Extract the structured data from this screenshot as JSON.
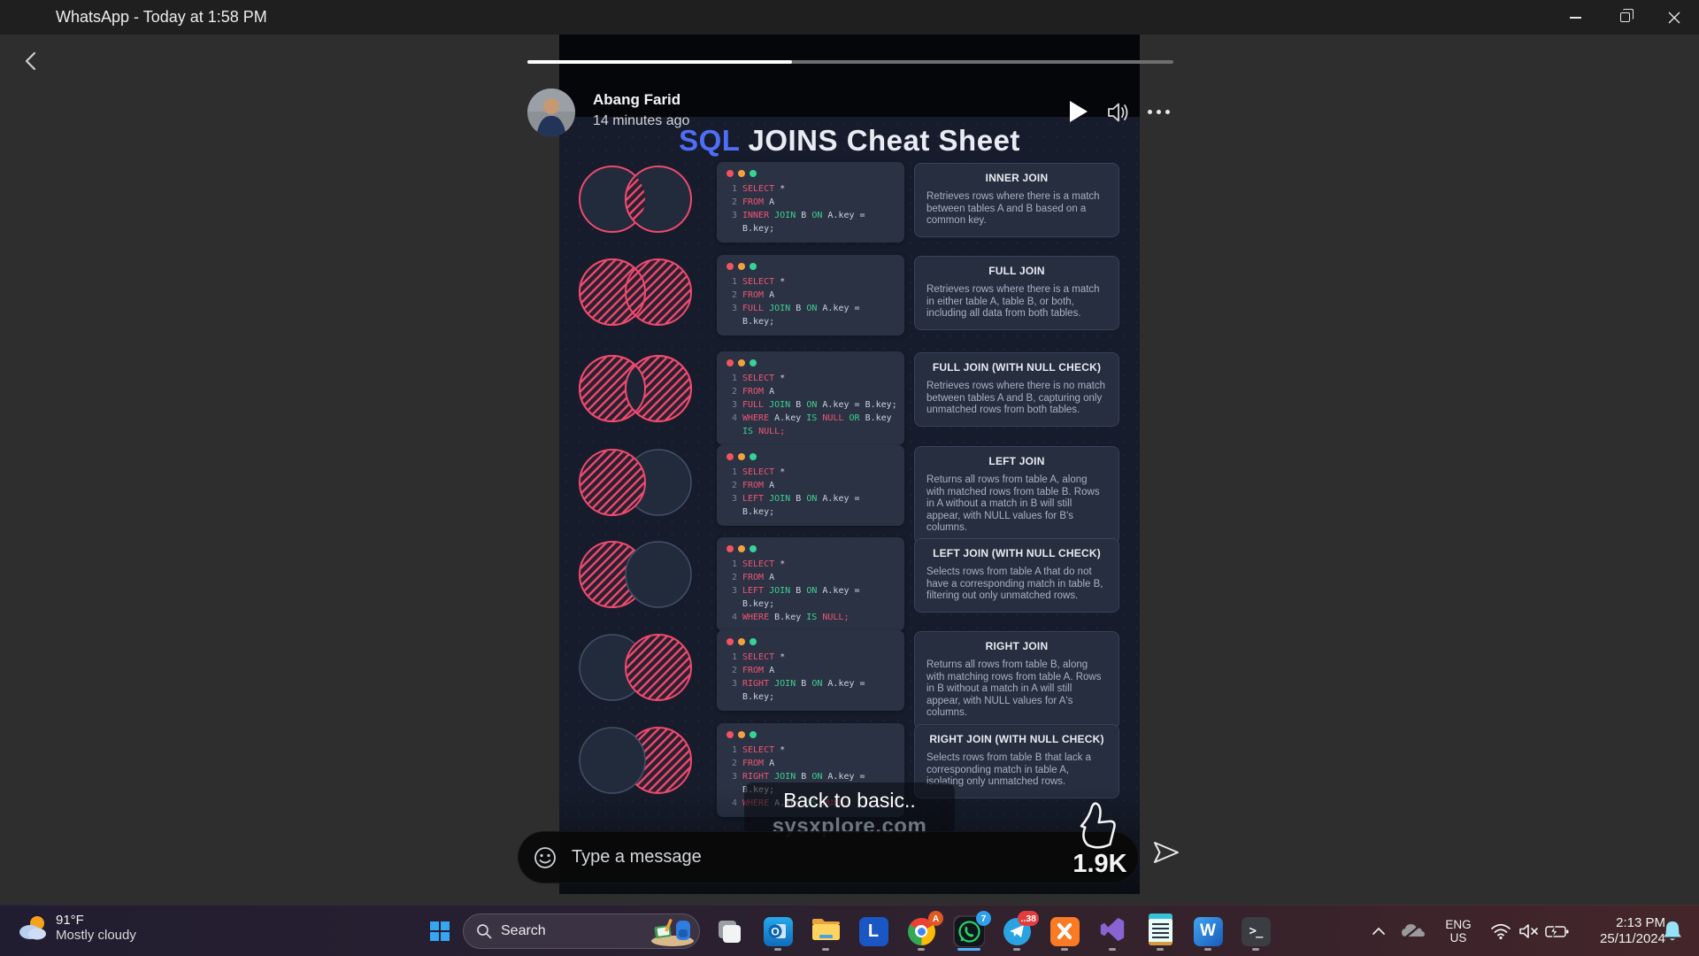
{
  "window": {
    "title": "WhatsApp - Today at 1:58 PM"
  },
  "status": {
    "author": "Abang Farid",
    "time_ago": "14 minutes ago",
    "progress_percent": 41,
    "caption": "Back to basic..",
    "watermark": "sysxplore.com",
    "likes": "1.9K",
    "message_placeholder": "Type a message"
  },
  "colors": {
    "title_accent": "#4f6ef7",
    "keyword": "#ee5672",
    "green": "#3fd08f",
    "plain": "#ccd3de",
    "hatch": "#ee4a6e",
    "circle_fill": "#222b3c",
    "circle_faint_stroke": "#435069",
    "progress_fill": "#ffffff",
    "bell": "#97e3f6"
  },
  "cheatsheet": {
    "title_accent": "SQL",
    "title_rest": " JOINS Cheat Sheet",
    "rows": [
      {
        "title": "INNER JOIN",
        "venn": "inner",
        "description": "Retrieves rows where there is a match between tables A and B based on a common key.",
        "code": [
          {
            "n": "1",
            "seg": [
              [
                "k",
                "SELECT"
              ],
              [
                "p",
                "*"
              ]
            ]
          },
          {
            "n": "2",
            "seg": [
              [
                "k",
                "FROM"
              ],
              [
                "p",
                "A"
              ]
            ]
          },
          {
            "n": "3",
            "seg": [
              [
                "k",
                "INNER"
              ],
              [
                "g",
                "JOIN"
              ],
              [
                "p",
                "B"
              ],
              [
                "g",
                "ON"
              ],
              [
                "p",
                "A.key"
              ],
              [
                "p",
                "="
              ]
            ]
          },
          {
            "n": "",
            "seg": [
              [
                "p",
                "B.key;"
              ]
            ]
          }
        ]
      },
      {
        "title": "FULL JOIN",
        "venn": "full",
        "description": "Retrieves rows where there is a match in either table A, table B, or both, including all data from both tables.",
        "code": [
          {
            "n": "1",
            "seg": [
              [
                "k",
                "SELECT"
              ],
              [
                "p",
                "*"
              ]
            ]
          },
          {
            "n": "2",
            "seg": [
              [
                "k",
                "FROM"
              ],
              [
                "p",
                "A"
              ]
            ]
          },
          {
            "n": "3",
            "seg": [
              [
                "k",
                "FULL"
              ],
              [
                "g",
                "JOIN"
              ],
              [
                "p",
                "B"
              ],
              [
                "g",
                "ON"
              ],
              [
                "p",
                "A.key"
              ],
              [
                "p",
                "="
              ]
            ]
          },
          {
            "n": "",
            "seg": [
              [
                "p",
                "B.key;"
              ]
            ]
          }
        ]
      },
      {
        "title": "FULL JOIN (WITH NULL CHECK)",
        "venn": "fullOuter",
        "description": "Retrieves rows where there is no match between tables A and B, capturing only unmatched rows from both tables.",
        "code": [
          {
            "n": "1",
            "seg": [
              [
                "k",
                "SELECT"
              ],
              [
                "p",
                "*"
              ]
            ]
          },
          {
            "n": "2",
            "seg": [
              [
                "k",
                "FROM"
              ],
              [
                "p",
                "A"
              ]
            ]
          },
          {
            "n": "3",
            "seg": [
              [
                "k",
                "FULL"
              ],
              [
                "g",
                "JOIN"
              ],
              [
                "p",
                "B"
              ],
              [
                "g",
                "ON"
              ],
              [
                "p",
                "A.key"
              ],
              [
                "p",
                "="
              ],
              [
                "p",
                "B.key;"
              ]
            ]
          },
          {
            "n": "4",
            "seg": [
              [
                "k",
                "WHERE"
              ],
              [
                "p",
                "A.key"
              ],
              [
                "g",
                "IS"
              ],
              [
                "k",
                "NULL"
              ],
              [
                "g",
                "OR"
              ],
              [
                "p",
                "B.key"
              ]
            ]
          },
          {
            "n": "",
            "seg": [
              [
                "g",
                "IS"
              ],
              [
                "k",
                "NULL;"
              ]
            ]
          }
        ]
      },
      {
        "title": "LEFT JOIN",
        "venn": "left",
        "description": "Returns all rows from table A, along with matched rows from table B. Rows in A without a match in B will still appear, with NULL values for B's columns.",
        "code": [
          {
            "n": "1",
            "seg": [
              [
                "k",
                "SELECT"
              ],
              [
                "p",
                "*"
              ]
            ]
          },
          {
            "n": "2",
            "seg": [
              [
                "k",
                "FROM"
              ],
              [
                "p",
                "A"
              ]
            ]
          },
          {
            "n": "3",
            "seg": [
              [
                "k",
                "LEFT"
              ],
              [
                "g",
                "JOIN"
              ],
              [
                "p",
                "B"
              ],
              [
                "g",
                "ON"
              ],
              [
                "p",
                "A.key"
              ],
              [
                "p",
                "="
              ]
            ]
          },
          {
            "n": "",
            "seg": [
              [
                "p",
                "B.key;"
              ]
            ]
          }
        ]
      },
      {
        "title": "LEFT JOIN (WITH NULL CHECK)",
        "venn": "leftOnly",
        "description": "Selects rows from table A that do not have a corresponding match in table B, filtering out only unmatched rows.",
        "code": [
          {
            "n": "1",
            "seg": [
              [
                "k",
                "SELECT"
              ],
              [
                "p",
                "*"
              ]
            ]
          },
          {
            "n": "2",
            "seg": [
              [
                "k",
                "FROM"
              ],
              [
                "p",
                "A"
              ]
            ]
          },
          {
            "n": "3",
            "seg": [
              [
                "k",
                "LEFT"
              ],
              [
                "g",
                "JOIN"
              ],
              [
                "p",
                "B"
              ],
              [
                "g",
                "ON"
              ],
              [
                "p",
                "A.key"
              ],
              [
                "p",
                "="
              ]
            ]
          },
          {
            "n": "",
            "seg": [
              [
                "p",
                "B.key;"
              ]
            ]
          },
          {
            "n": "4",
            "seg": [
              [
                "k",
                "WHERE"
              ],
              [
                "p",
                "B.key"
              ],
              [
                "g",
                "IS"
              ],
              [
                "k",
                "NULL;"
              ]
            ]
          }
        ]
      },
      {
        "title": "RIGHT JOIN",
        "venn": "right",
        "description": "Returns all rows from table B, along with matching rows from table A. Rows in B without a match in A will still appear, with NULL values for A's columns.",
        "code": [
          {
            "n": "1",
            "seg": [
              [
                "k",
                "SELECT"
              ],
              [
                "p",
                "*"
              ]
            ]
          },
          {
            "n": "2",
            "seg": [
              [
                "k",
                "FROM"
              ],
              [
                "p",
                "A"
              ]
            ]
          },
          {
            "n": "3",
            "seg": [
              [
                "k",
                "RIGHT"
              ],
              [
                "g",
                "JOIN"
              ],
              [
                "p",
                "B"
              ],
              [
                "g",
                "ON"
              ],
              [
                "p",
                "A.key"
              ],
              [
                "p",
                "="
              ]
            ]
          },
          {
            "n": "",
            "seg": [
              [
                "p",
                "B.key;"
              ]
            ]
          }
        ]
      },
      {
        "title": "RIGHT JOIN (WITH NULL CHECK)",
        "venn": "rightOnly",
        "description": "Selects rows from table B that lack a corresponding match in table A, isolating only unmatched rows.",
        "code": [
          {
            "n": "1",
            "seg": [
              [
                "k",
                "SELECT"
              ],
              [
                "p",
                "*"
              ]
            ]
          },
          {
            "n": "2",
            "seg": [
              [
                "k",
                "FROM"
              ],
              [
                "p",
                "A"
              ]
            ]
          },
          {
            "n": "3",
            "seg": [
              [
                "k",
                "RIGHT"
              ],
              [
                "g",
                "JOIN"
              ],
              [
                "p",
                "B"
              ],
              [
                "g",
                "ON"
              ],
              [
                "p",
                "A.key"
              ],
              [
                "p",
                "="
              ]
            ]
          },
          {
            "n": "",
            "seg": [
              [
                "p",
                "B.key;"
              ]
            ]
          },
          {
            "n": "4",
            "seg": [
              [
                "k",
                "WHERE"
              ],
              [
                "p",
                "A.key"
              ],
              [
                "g",
                "IS"
              ],
              [
                "k",
                "NULL;"
              ]
            ]
          }
        ]
      }
    ]
  },
  "taskbar": {
    "weather": {
      "temp": "91°F",
      "condition": "Mostly cloudy"
    },
    "search_label": "Search",
    "badges": {
      "chrome": "A",
      "whatsapp": "7",
      "telegram": "..38"
    }
  },
  "tray": {
    "lang_line1": "ENG",
    "lang_line2": "US",
    "time": "2:13 PM",
    "date": "25/11/2024"
  }
}
